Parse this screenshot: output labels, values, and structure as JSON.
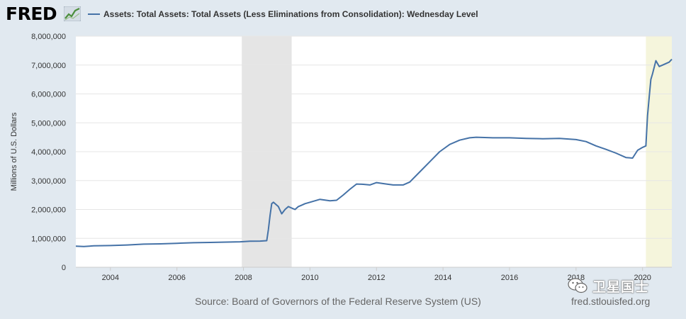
{
  "header": {
    "logo_text": "FRED",
    "logo_icon": "line-chart-icon",
    "legend_label": "Assets: Total Assets: Total Assets (Less Eliminations from Consolidation): Wednesday Level"
  },
  "footer": {
    "source": "Source: Board of Governors of the Federal Reserve System (US)",
    "site": "fred.stlouisfed.org"
  },
  "watermark": {
    "text": "卫星国士",
    "icon": "wechat-icon"
  },
  "colors": {
    "line": "#4572a7",
    "recession_shade": "#e5e5e5",
    "highlight_shade": "#f5f5dc",
    "background": "#e1e9f0",
    "plot_background": "#ffffff"
  },
  "chart_data": {
    "type": "line",
    "ylabel": "Millions of U.S. Dollars",
    "xlabel": "",
    "x_range": [
      2002.96,
      2020.88
    ],
    "ylim": [
      0,
      8000000
    ],
    "y_ticks": [
      0,
      1000000,
      2000000,
      3000000,
      4000000,
      5000000,
      6000000,
      7000000,
      8000000
    ],
    "y_tick_labels": [
      "0",
      "1,000,000",
      "2,000,000",
      "3,000,000",
      "4,000,000",
      "5,000,000",
      "6,000,000",
      "7,000,000",
      "8,000,000"
    ],
    "x_ticks": [
      2004,
      2006,
      2008,
      2010,
      2012,
      2014,
      2016,
      2018,
      2020
    ],
    "x_tick_labels": [
      "2004",
      "2006",
      "2008",
      "2010",
      "2012",
      "2014",
      "2016",
      "2018",
      "2020"
    ],
    "grid": true,
    "legend": "top",
    "shaded_periods": [
      {
        "start": 2007.95,
        "end": 2009.45,
        "kind": "recession"
      },
      {
        "start": 2020.1,
        "end": 2020.88,
        "kind": "highlight"
      }
    ],
    "series": [
      {
        "name": "Assets: Total Assets: Total Assets (Less Eliminations from Consolidation): Wednesday Level",
        "x": [
          2002.96,
          2003.2,
          2003.5,
          2004.0,
          2004.5,
          2005.0,
          2005.5,
          2006.0,
          2006.5,
          2007.0,
          2007.5,
          2007.9,
          2008.2,
          2008.5,
          2008.7,
          2008.75,
          2008.8,
          2008.85,
          2008.9,
          2008.95,
          2009.0,
          2009.05,
          2009.15,
          2009.25,
          2009.35,
          2009.45,
          2009.55,
          2009.65,
          2009.75,
          2009.85,
          2010.0,
          2010.3,
          2010.6,
          2010.8,
          2011.0,
          2011.2,
          2011.4,
          2011.6,
          2011.8,
          2012.0,
          2012.3,
          2012.5,
          2012.8,
          2013.0,
          2013.3,
          2013.6,
          2013.9,
          2014.2,
          2014.5,
          2014.8,
          2015.0,
          2015.5,
          2016.0,
          2016.5,
          2017.0,
          2017.5,
          2018.0,
          2018.3,
          2018.6,
          2018.9,
          2019.2,
          2019.5,
          2019.7,
          2019.85,
          2020.0,
          2020.1,
          2020.15,
          2020.2,
          2020.25,
          2020.3,
          2020.4,
          2020.5,
          2020.6,
          2020.7,
          2020.8,
          2020.88
        ],
        "values": [
          730000,
          720000,
          740000,
          750000,
          770000,
          800000,
          810000,
          830000,
          850000,
          860000,
          870000,
          880000,
          900000,
          905000,
          920000,
          1300000,
          1800000,
          2200000,
          2250000,
          2200000,
          2150000,
          2100000,
          1850000,
          2000000,
          2100000,
          2050000,
          2000000,
          2100000,
          2150000,
          2200000,
          2250000,
          2350000,
          2300000,
          2320000,
          2500000,
          2700000,
          2880000,
          2870000,
          2850000,
          2930000,
          2880000,
          2850000,
          2850000,
          2950000,
          3300000,
          3650000,
          4000000,
          4250000,
          4400000,
          4480000,
          4500000,
          4480000,
          4480000,
          4460000,
          4450000,
          4460000,
          4420000,
          4350000,
          4200000,
          4080000,
          3950000,
          3800000,
          3780000,
          4050000,
          4150000,
          4200000,
          5250000,
          5900000,
          6500000,
          6700000,
          7150000,
          6950000,
          7000000,
          7050000,
          7100000,
          7200000
        ]
      }
    ]
  }
}
